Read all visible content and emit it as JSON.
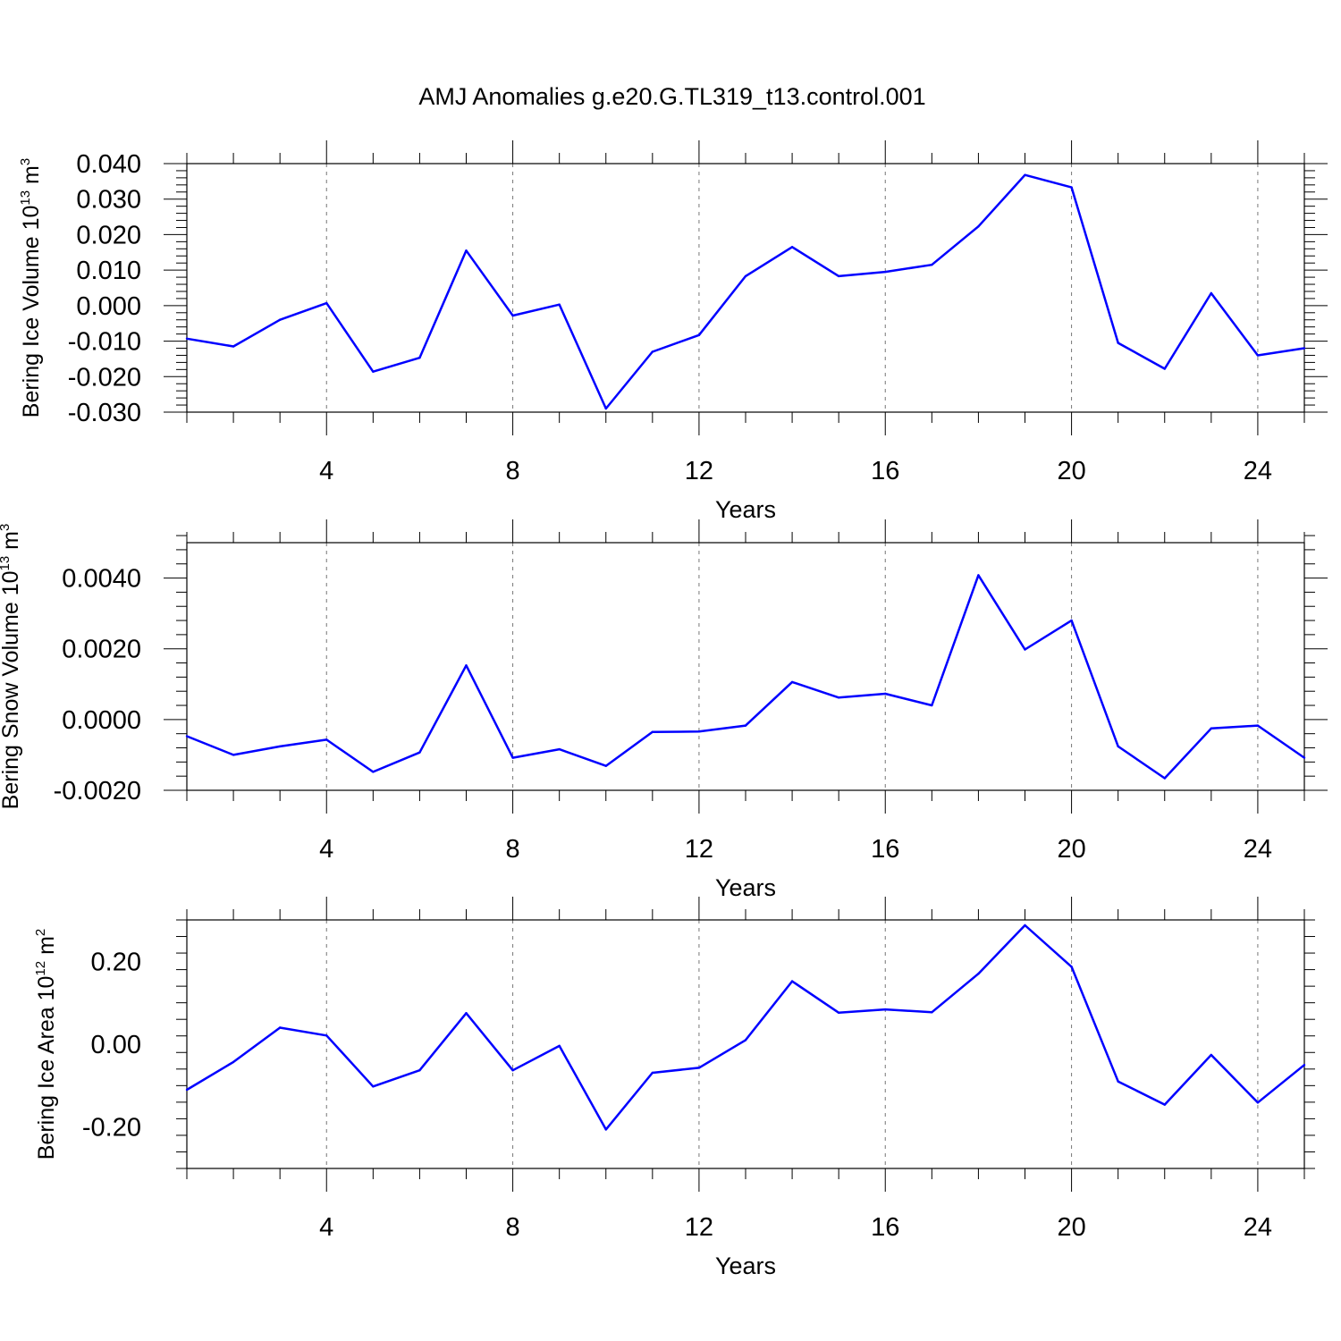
{
  "title": "AMJ Anomalies g.e20.G.TL319_t13.control.001",
  "chart_data": [
    {
      "type": "line",
      "ylabel": "Bering Ice Volume 10",
      "ylabel_exp": "13",
      "ylabel_unit": " m",
      "ylabel_unit_exp": "3",
      "xlabel": "Years",
      "xlim": [
        1,
        25
      ],
      "ylim": [
        -0.03,
        0.04
      ],
      "xticks": [
        4,
        8,
        12,
        16,
        20,
        24
      ],
      "xtick_labels": [
        "4",
        "8",
        "12",
        "16",
        "20",
        "24"
      ],
      "yticks": [
        -0.03,
        -0.02,
        -0.01,
        0.0,
        0.01,
        0.02,
        0.03,
        0.04
      ],
      "ytick_labels": [
        "-0.030",
        "-0.020",
        "-0.010",
        "0.000",
        "0.010",
        "0.020",
        "0.030",
        "0.040"
      ],
      "grid": "x-dashed",
      "color": "#0000ff",
      "x": [
        1,
        2,
        3,
        4,
        5,
        6,
        7,
        8,
        9,
        10,
        11,
        12,
        13,
        14,
        15,
        16,
        17,
        18,
        19,
        20,
        21,
        22,
        23,
        24,
        25
      ],
      "y": [
        -0.0093,
        -0.0115,
        -0.004,
        0.0007,
        -0.0186,
        -0.0147,
        0.0155,
        -0.0028,
        0.0003,
        -0.029,
        -0.013,
        -0.0083,
        0.0083,
        0.0165,
        0.0083,
        0.0095,
        0.0115,
        0.0223,
        0.0368,
        0.0333,
        -0.0105,
        -0.0178,
        0.0035,
        -0.014,
        -0.012
      ]
    },
    {
      "type": "line",
      "ylabel": "Bering Snow Volume 10",
      "ylabel_exp": "13",
      "ylabel_unit": " m",
      "ylabel_unit_exp": "3",
      "xlabel": "Years",
      "xlim": [
        1,
        25
      ],
      "ylim": [
        -0.002,
        0.005
      ],
      "xticks": [
        4,
        8,
        12,
        16,
        20,
        24
      ],
      "xtick_labels": [
        "4",
        "8",
        "12",
        "16",
        "20",
        "24"
      ],
      "yticks": [
        -0.002,
        0.0,
        0.002,
        0.004
      ],
      "ytick_labels": [
        "-0.0020",
        "0.0000",
        "0.0020",
        "0.0040"
      ],
      "grid": "x-dashed",
      "color": "#0000ff",
      "x": [
        1,
        2,
        3,
        4,
        5,
        6,
        7,
        8,
        9,
        10,
        11,
        12,
        13,
        14,
        15,
        16,
        17,
        18,
        19,
        20,
        21,
        22,
        23,
        24,
        25
      ],
      "y": [
        -0.00047,
        -0.001,
        -0.00076,
        -0.00057,
        -0.00148,
        -0.00093,
        0.00153,
        -0.00108,
        -0.00084,
        -0.00131,
        -0.00035,
        -0.00034,
        -0.00017,
        0.00106,
        0.00062,
        0.00073,
        0.0004,
        0.00408,
        0.00198,
        0.0028,
        -0.00076,
        -0.00166,
        -0.00025,
        -0.00017,
        -0.00108
      ]
    },
    {
      "type": "line",
      "ylabel": "Bering Ice Area 10",
      "ylabel_exp": "12",
      "ylabel_unit": " m",
      "ylabel_unit_exp": "2",
      "xlabel": "Years",
      "xlim": [
        1,
        25
      ],
      "ylim": [
        -0.3,
        0.3
      ],
      "xticks": [
        4,
        8,
        12,
        16,
        20,
        24
      ],
      "xtick_labels": [
        "4",
        "8",
        "12",
        "16",
        "20",
        "24"
      ],
      "yticks": [
        -0.2,
        0.0,
        0.2
      ],
      "ytick_labels": [
        "-0.20",
        "0.00",
        "0.20"
      ],
      "grid": "x-dashed",
      "color": "#0000ff",
      "x": [
        1,
        2,
        3,
        4,
        5,
        6,
        7,
        8,
        9,
        10,
        11,
        12,
        13,
        14,
        15,
        16,
        17,
        18,
        19,
        20,
        21,
        22,
        23,
        24,
        25
      ],
      "y": [
        -0.11,
        -0.043,
        0.04,
        0.021,
        -0.102,
        -0.063,
        0.075,
        -0.063,
        -0.004,
        -0.206,
        -0.069,
        -0.057,
        0.01,
        0.152,
        0.076,
        0.084,
        0.077,
        0.17,
        0.287,
        0.187,
        -0.09,
        -0.146,
        -0.026,
        -0.141,
        -0.05
      ]
    }
  ]
}
